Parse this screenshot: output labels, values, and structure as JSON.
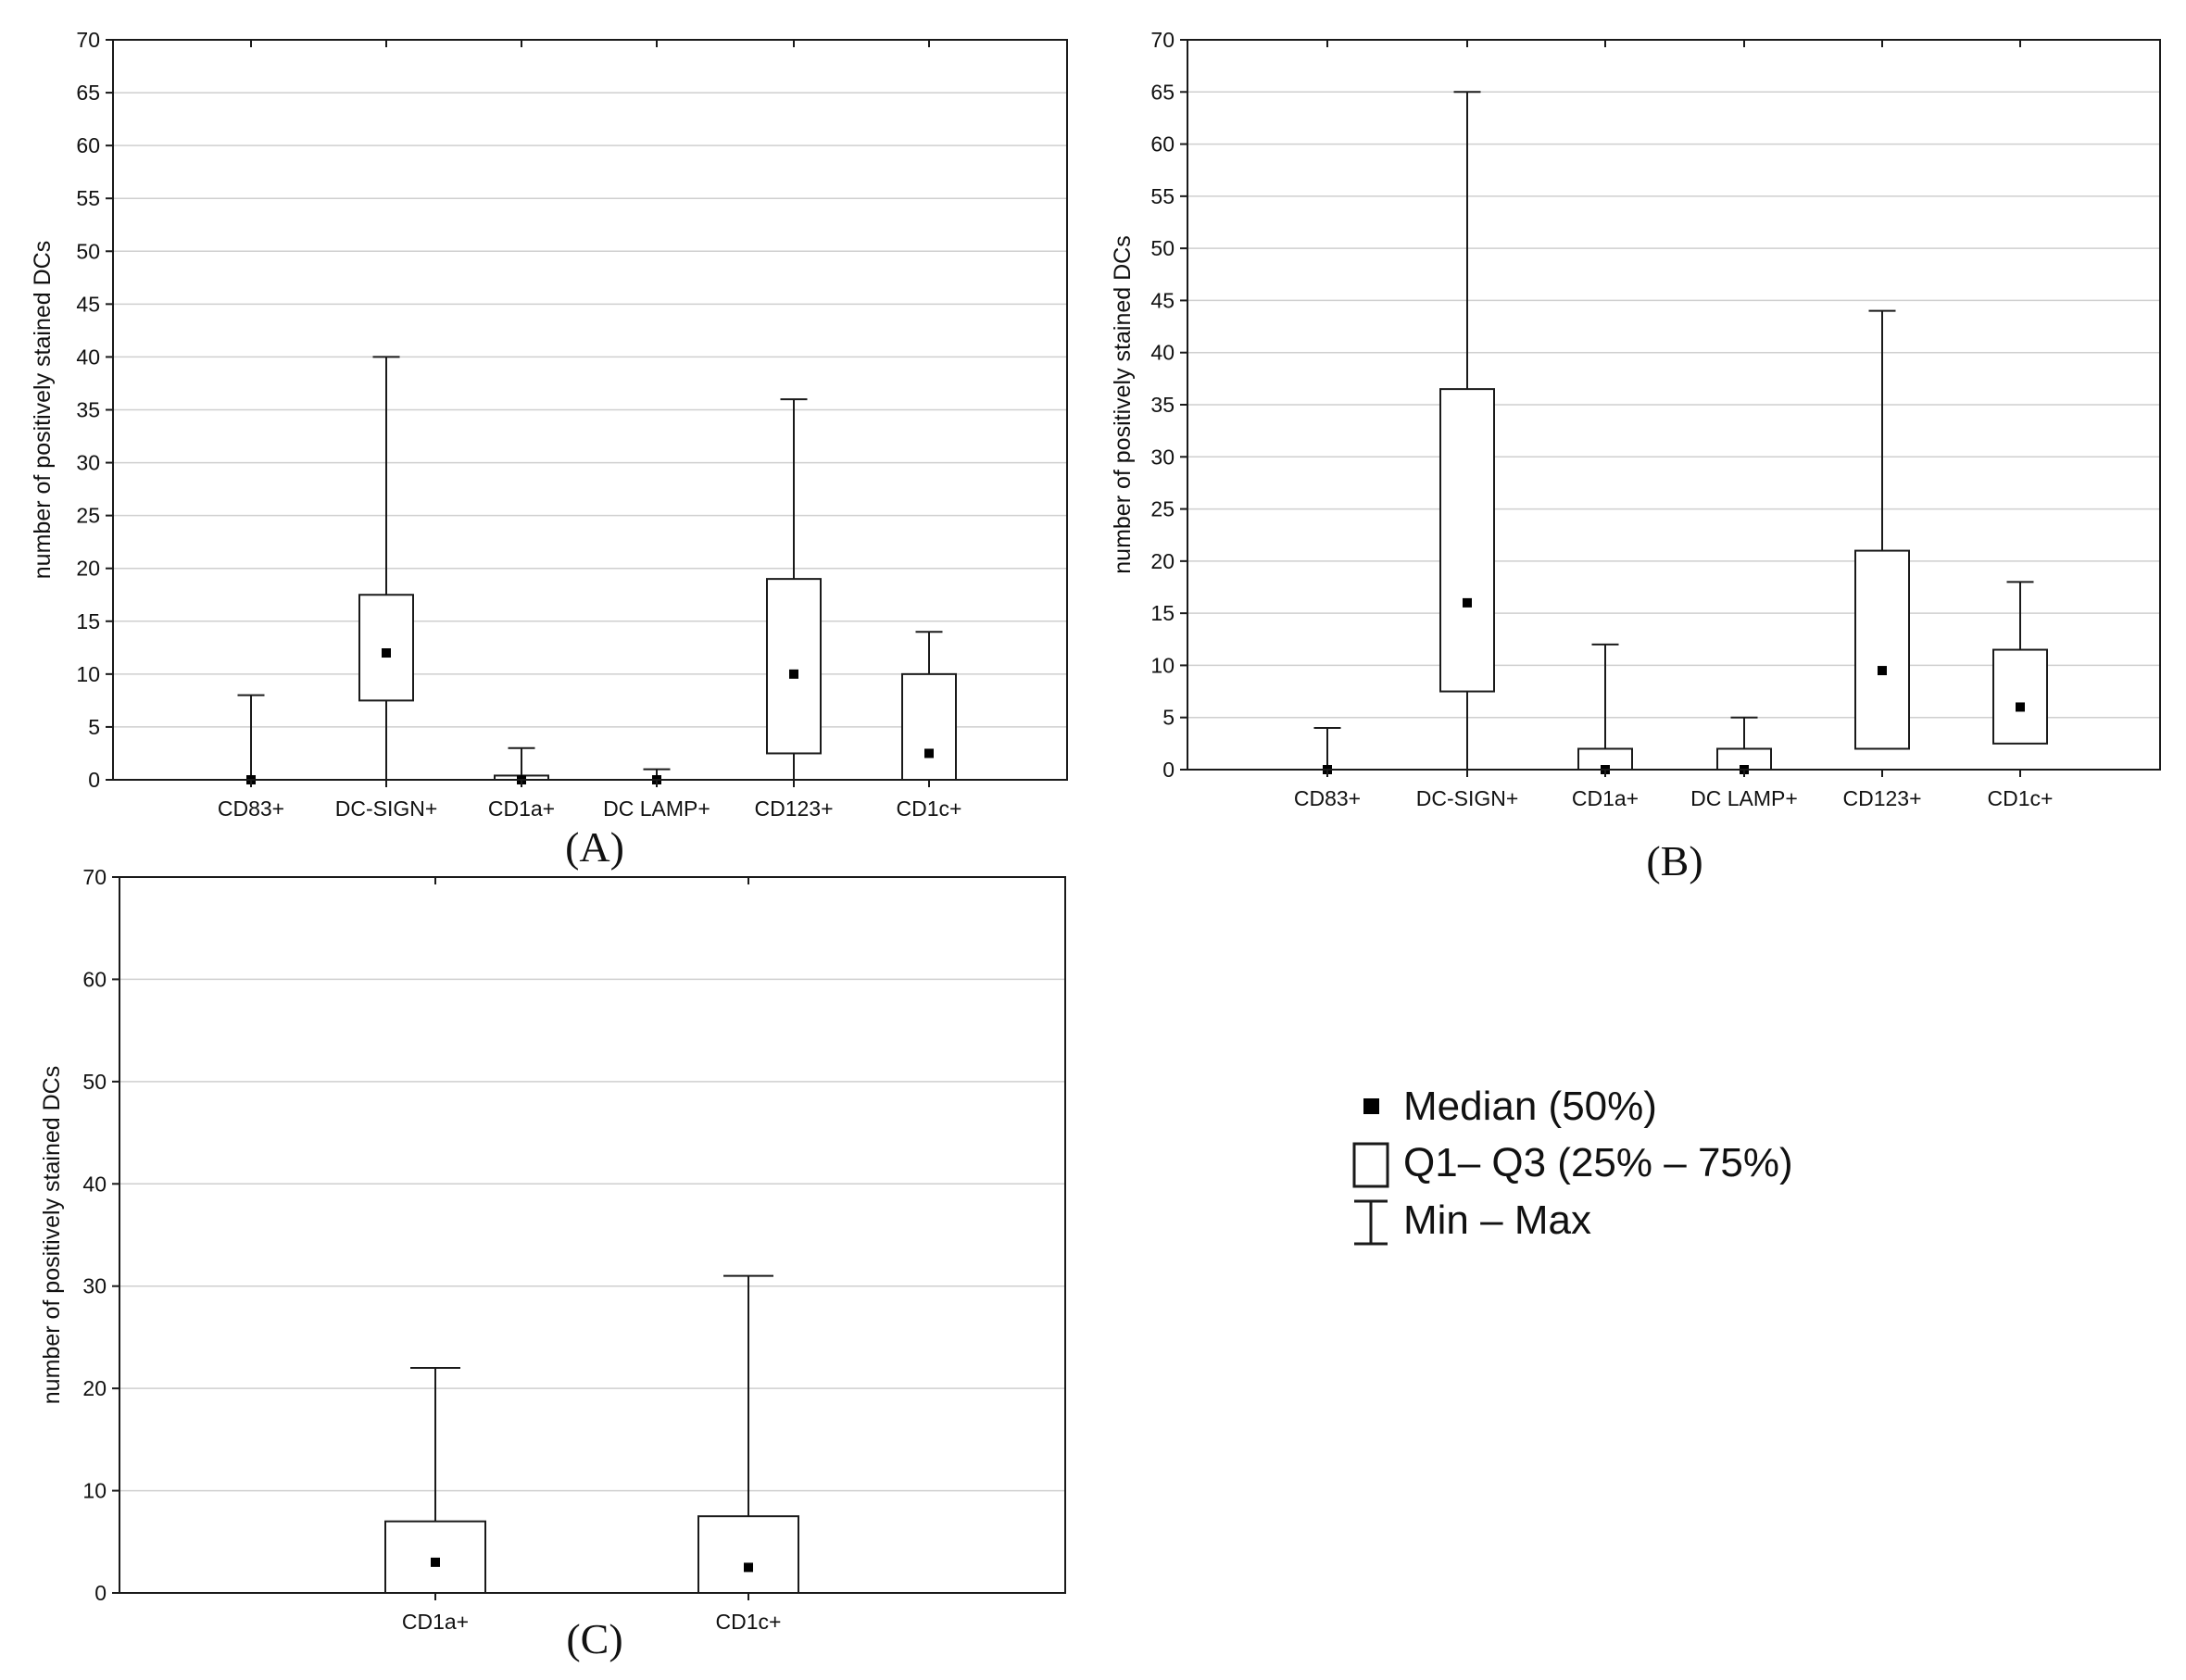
{
  "chart_data": [
    {
      "type": "boxplot",
      "panel_label": "(A)",
      "ylabel": "number of positively stained DCs",
      "ylim": [
        0,
        70
      ],
      "yticks": [
        0,
        5,
        10,
        15,
        20,
        25,
        30,
        35,
        40,
        45,
        50,
        55,
        60,
        65,
        70
      ],
      "grid": true,
      "categories": [
        "CD83+",
        "DC-SIGN+",
        "CD1a+",
        "DC LAMP+",
        "CD123+",
        "CD1c+"
      ],
      "boxes": [
        {
          "min": 0,
          "q1": 0,
          "median": 0,
          "q3": 0,
          "max": 8
        },
        {
          "min": 0,
          "q1": 7.5,
          "median": 12,
          "q3": 17.5,
          "max": 40
        },
        {
          "min": 0,
          "q1": 0,
          "median": 0,
          "q3": 0.4,
          "max": 3
        },
        {
          "min": 0,
          "q1": 0,
          "median": 0,
          "q3": 0,
          "max": 1
        },
        {
          "min": 0,
          "q1": 2.5,
          "median": 10,
          "q3": 19,
          "max": 36
        },
        {
          "min": 0,
          "q1": 0,
          "median": 2.5,
          "q3": 10,
          "max": 14
        }
      ]
    },
    {
      "type": "boxplot",
      "panel_label": "(B)",
      "ylabel": "number of positively stained DCs",
      "ylim": [
        0,
        70
      ],
      "yticks": [
        0,
        5,
        10,
        15,
        20,
        25,
        30,
        35,
        40,
        45,
        50,
        55,
        60,
        65,
        70
      ],
      "grid": true,
      "categories": [
        "CD83+",
        "DC-SIGN+",
        "CD1a+",
        "DC LAMP+",
        "CD123+",
        "CD1c+"
      ],
      "boxes": [
        {
          "min": 0,
          "q1": 0,
          "median": 0,
          "q3": 0,
          "max": 4
        },
        {
          "min": 0,
          "q1": 7.5,
          "median": 16,
          "q3": 36.5,
          "max": 65
        },
        {
          "min": 0,
          "q1": 0,
          "median": 0,
          "q3": 2,
          "max": 12
        },
        {
          "min": 0,
          "q1": 0,
          "median": 0,
          "q3": 2,
          "max": 5
        },
        {
          "min": 2,
          "q1": 2,
          "median": 9.5,
          "q3": 21,
          "max": 44
        },
        {
          "min": 2.5,
          "q1": 2.5,
          "median": 6,
          "q3": 11.5,
          "max": 18
        }
      ]
    },
    {
      "type": "boxplot",
      "panel_label": "(C)",
      "ylabel": "number of positively stained DCs",
      "ylim": [
        0,
        70
      ],
      "yticks": [
        0,
        10,
        20,
        30,
        40,
        50,
        60,
        70
      ],
      "grid": true,
      "categories": [
        "CD1a+",
        "CD1c+"
      ],
      "boxes": [
        {
          "min": 0,
          "q1": 0,
          "median": 3,
          "q3": 7,
          "max": 22
        },
        {
          "min": 0,
          "q1": 0,
          "median": 2.5,
          "q3": 7.5,
          "max": 31
        }
      ]
    }
  ],
  "legend": {
    "median_label": "Median (50%)",
    "box_label": "Q1– Q3 (25% – 75%)",
    "range_label": "Min – Max"
  },
  "colors": {
    "axis": "#1a1a1a",
    "grid": "#cfcfcf",
    "box_fill": "#ffffff",
    "median": "#000000"
  }
}
